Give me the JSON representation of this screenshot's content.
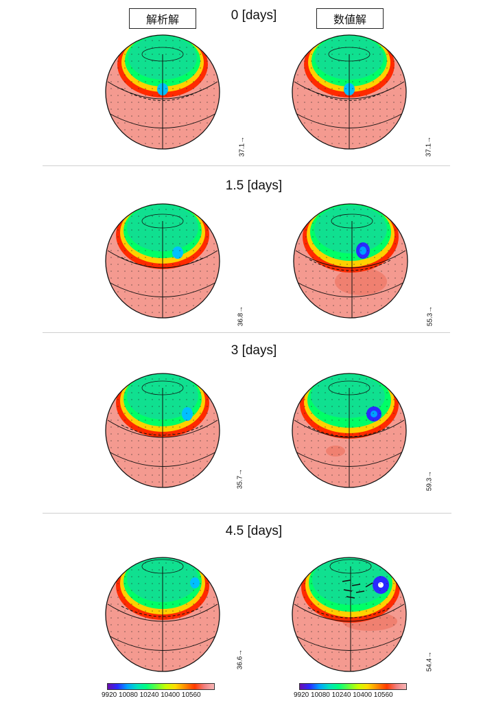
{
  "header": {
    "left_label": "解析解",
    "right_label": "数値解"
  },
  "rows": [
    {
      "time": "0 [days]",
      "left_vec": "37.1",
      "right_vec": "37.1"
    },
    {
      "time": "1.5 [days]",
      "left_vec": "36.8",
      "right_vec": "55.3"
    },
    {
      "time": "3 [days]",
      "left_vec": "35.7",
      "right_vec": "59.3"
    },
    {
      "time": "4.5 [days]",
      "left_vec": "36.6",
      "right_vec": "54.4"
    }
  ],
  "colorbar": {
    "ticks_text": "9920  10080 10240 10400 10560",
    "colors": [
      "#6a0dad",
      "#2a2aff",
      "#00a0ff",
      "#00e0c0",
      "#00ff80",
      "#60ff40",
      "#c8ff00",
      "#ffdc00",
      "#ff8c00",
      "#ff3a00",
      "#f08080",
      "#f7b6b6"
    ]
  }
}
